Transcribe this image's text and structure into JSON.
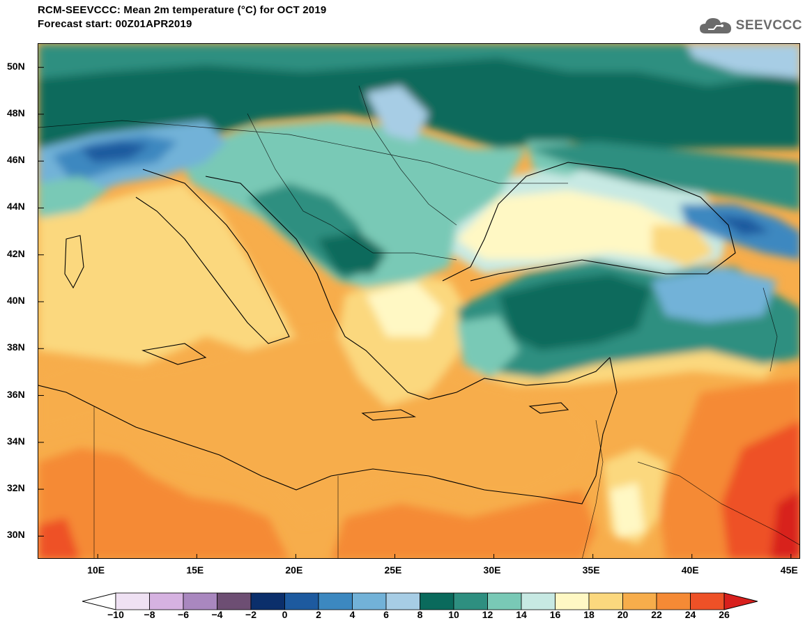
{
  "header": {
    "title": "RCM-SEEVCCC: Mean 2m temperature (°C) for OCT 2019",
    "subtitle": "Forecast start: 00Z01APR2019",
    "logo_text": "SEEVCCC",
    "logo_icon": "cloud-icon"
  },
  "map": {
    "lon_range": [
      7,
      45.5
    ],
    "lat_range": [
      29,
      51
    ],
    "lat_ticks": [
      "50N",
      "48N",
      "46N",
      "44N",
      "42N",
      "40N",
      "38N",
      "36N",
      "34N",
      "32N",
      "30N"
    ],
    "lat_tick_values": [
      50,
      48,
      46,
      44,
      42,
      40,
      38,
      36,
      34,
      32,
      30
    ],
    "lon_ticks": [
      "10E",
      "15E",
      "20E",
      "25E",
      "30E",
      "35E",
      "40E",
      "45E"
    ],
    "lon_tick_values": [
      10,
      15,
      20,
      25,
      30,
      35,
      40,
      45
    ]
  },
  "colorbar": {
    "labels": [
      "-10",
      "-8",
      "-6",
      "-4",
      "-2",
      "0",
      "2",
      "4",
      "6",
      "8",
      "10",
      "12",
      "14",
      "16",
      "18",
      "20",
      "22",
      "24",
      "26"
    ],
    "colors": [
      "#ffffff",
      "#efe1f3",
      "#d6b2e1",
      "#a987bf",
      "#6d4e73",
      "#0b2f6b",
      "#1d5a9f",
      "#3c88c0",
      "#72b2d8",
      "#a7cde5",
      "#0a6a5c",
      "#2e8f80",
      "#79c9b6",
      "#c7e9e3",
      "#fff8c4",
      "#fbd87e",
      "#f7ad4b",
      "#f58a35",
      "#ee5127",
      "#d8201d"
    ]
  }
}
